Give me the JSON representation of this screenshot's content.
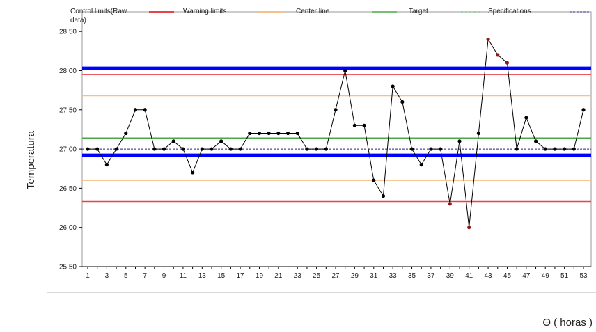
{
  "chart_data": {
    "type": "line",
    "xlabel": "Θ ( horas )",
    "ylabel": "Temperatura",
    "xlim": [
      1,
      53
    ],
    "ylim": [
      25.5,
      28.75
    ],
    "y_ticks": [
      "25,50",
      "26,00",
      "26,50",
      "27,00",
      "27,50",
      "28,00",
      "28,50"
    ],
    "y_tick_values": [
      25.5,
      26.0,
      26.5,
      27.0,
      27.5,
      28.0,
      28.5
    ],
    "x_ticks": [
      1,
      3,
      5,
      7,
      9,
      11,
      13,
      15,
      17,
      19,
      21,
      23,
      25,
      27,
      29,
      31,
      33,
      35,
      37,
      39,
      41,
      43,
      45,
      47,
      49,
      51,
      53
    ],
    "legend": [
      {
        "label": "Control limits(Raw data)",
        "color": "#0000ff",
        "style": "solid"
      },
      {
        "label": "Warning limits",
        "color": "#e8434b",
        "style": "solid"
      },
      {
        "label": "Center line",
        "color": "#f5c08a",
        "style": "solid"
      },
      {
        "label": "Target",
        "color": "#4aa84a",
        "style": "solid"
      },
      {
        "label": "Specifications",
        "color": "#4aa84a",
        "style": "dashed"
      },
      {
        "label": "",
        "color": "#222288",
        "style": "dashed"
      }
    ],
    "reference_lines": [
      {
        "kind": "control",
        "y": 28.03,
        "color": "#0000ff",
        "style": "thick"
      },
      {
        "kind": "control",
        "y": 26.92,
        "color": "#0000ff",
        "style": "thick"
      },
      {
        "kind": "warning",
        "y": 27.95,
        "color": "#e8434b",
        "style": "solid"
      },
      {
        "kind": "warning",
        "y": 26.33,
        "color": "#e8434b",
        "style": "solid"
      },
      {
        "kind": "zone",
        "y": 27.68,
        "color": "#f5c08a",
        "style": "solid"
      },
      {
        "kind": "zone",
        "y": 26.6,
        "color": "#f5c08a",
        "style": "solid"
      },
      {
        "kind": "target",
        "y": 27.14,
        "color": "#4aa84a",
        "style": "solid"
      },
      {
        "kind": "spec",
        "y": 27.0,
        "color": "#222288",
        "style": "dashed"
      }
    ],
    "series": [
      {
        "x": [
          1,
          2,
          3,
          4,
          5,
          6,
          7,
          8,
          9,
          10,
          11,
          12,
          13,
          14,
          15,
          16,
          17,
          18,
          19,
          20,
          21,
          22,
          23,
          24,
          25,
          26,
          27,
          28,
          29,
          30,
          31,
          32,
          33,
          34,
          35,
          36,
          37,
          38,
          39,
          40,
          41,
          42,
          43,
          44,
          45,
          46,
          47,
          48,
          49,
          50,
          51,
          52,
          53
        ],
        "y": [
          27.0,
          27.0,
          26.8,
          27.0,
          27.2,
          27.5,
          27.5,
          27.0,
          27.0,
          27.1,
          27.0,
          26.7,
          27.0,
          27.0,
          27.1,
          27.0,
          27.0,
          27.2,
          27.2,
          27.2,
          27.2,
          27.2,
          27.2,
          27.0,
          27.0,
          27.0,
          27.5,
          28.0,
          27.3,
          27.3,
          26.6,
          26.4,
          27.8,
          27.6,
          27.0,
          26.8,
          27.0,
          27.0,
          26.3,
          27.1,
          26.0,
          27.2,
          28.4,
          28.2,
          28.1,
          27.0,
          27.4,
          27.1,
          27.0,
          27.0,
          27.0,
          27.0,
          27.5
        ],
        "color": "#000000",
        "marker_color": "#000000",
        "out_of_control_marker_color": "#8b1a1a",
        "out_of_control_x": [
          39,
          41,
          43,
          44,
          45
        ]
      }
    ],
    "grid": false
  }
}
